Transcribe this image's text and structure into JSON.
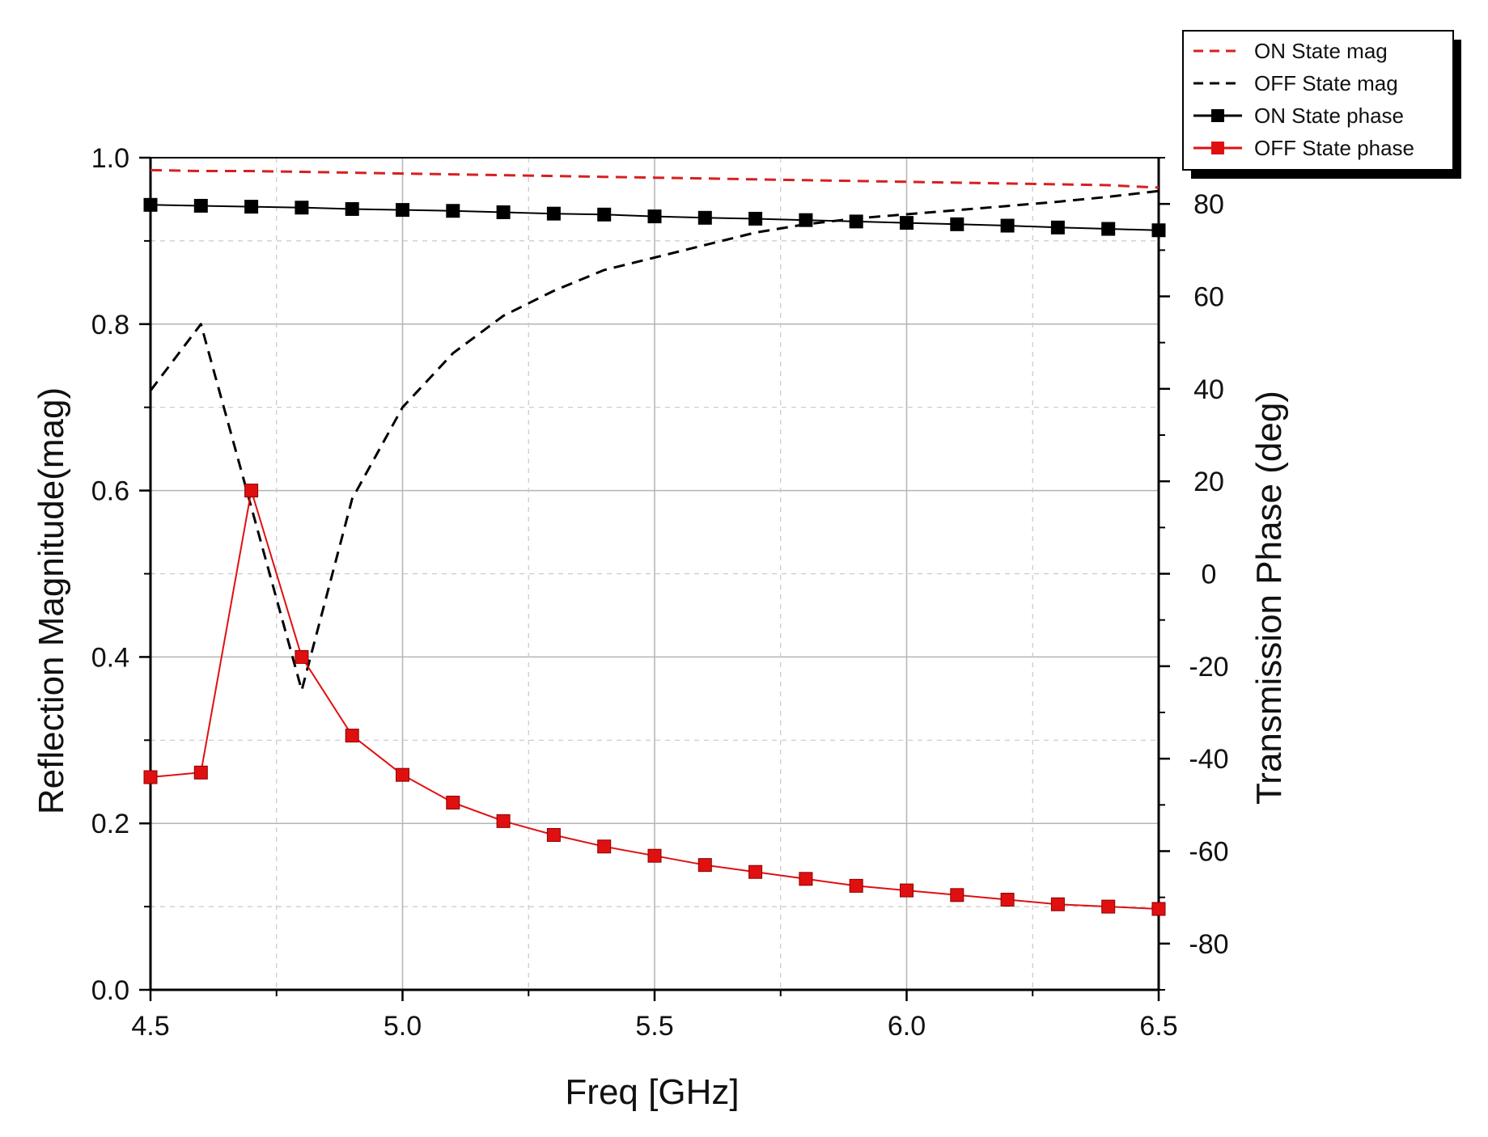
{
  "chart_data": {
    "type": "line",
    "title": "",
    "xlabel": "Freq [GHz]",
    "ylabel": "Reflection Magnitude(mag)",
    "y2label": "Transmission Phase (deg)",
    "xlim": [
      4.5,
      6.5
    ],
    "ylim": [
      0.0,
      1.0
    ],
    "y2lim": [
      -90,
      90
    ],
    "x_ticks": [
      "4.5",
      "5.0",
      "5.5",
      "6.0",
      "6.5"
    ],
    "y_ticks": [
      "0.0",
      "0.2",
      "0.4",
      "0.6",
      "0.8",
      "1.0"
    ],
    "y2_ticks": [
      "-80",
      "-60",
      "-40",
      "-20",
      "0",
      "20",
      "40",
      "60",
      "80"
    ],
    "grid": true,
    "legend_position": "top-right",
    "series": [
      {
        "name": "ON State mag",
        "axis": "left",
        "style": "dashed",
        "color": "#d62020",
        "markers": false,
        "x": [
          4.5,
          4.6,
          4.7,
          4.8,
          4.9,
          5.0,
          5.1,
          5.2,
          5.3,
          5.4,
          5.5,
          5.6,
          5.7,
          5.8,
          5.9,
          6.0,
          6.1,
          6.2,
          6.3,
          6.4,
          6.5
        ],
        "values": [
          0.985,
          0.984,
          0.984,
          0.983,
          0.982,
          0.981,
          0.98,
          0.979,
          0.978,
          0.977,
          0.976,
          0.975,
          0.974,
          0.973,
          0.972,
          0.971,
          0.97,
          0.969,
          0.968,
          0.967,
          0.964
        ]
      },
      {
        "name": "OFF State mag",
        "axis": "left",
        "style": "dashed",
        "color": "#000000",
        "markers": false,
        "x": [
          4.5,
          4.6,
          4.7,
          4.8,
          4.9,
          5.0,
          5.1,
          5.2,
          5.3,
          5.4,
          5.5,
          5.6,
          5.7,
          5.8,
          5.9,
          6.0,
          6.1,
          6.2,
          6.3,
          6.4,
          6.5
        ],
        "values": [
          0.72,
          0.8,
          0.58,
          0.36,
          0.59,
          0.7,
          0.765,
          0.81,
          0.84,
          0.865,
          0.88,
          0.895,
          0.91,
          0.92,
          0.927,
          0.932,
          0.937,
          0.942,
          0.947,
          0.953,
          0.96
        ]
      },
      {
        "name": "ON State phase",
        "axis": "right",
        "style": "solid",
        "color": "#000000",
        "markers": true,
        "x": [
          4.5,
          4.6,
          4.7,
          4.8,
          4.9,
          5.0,
          5.1,
          5.2,
          5.3,
          5.4,
          5.5,
          5.6,
          5.7,
          5.8,
          5.9,
          6.0,
          6.1,
          6.2,
          6.3,
          6.4,
          6.5
        ],
        "values": [
          79.8,
          79.6,
          79.4,
          79.2,
          78.9,
          78.7,
          78.5,
          78.2,
          77.9,
          77.7,
          77.3,
          77.0,
          76.8,
          76.5,
          76.2,
          75.9,
          75.6,
          75.3,
          74.9,
          74.6,
          74.3
        ]
      },
      {
        "name": "OFF State phase",
        "axis": "right",
        "style": "solid",
        "color": "#e01010",
        "markers": true,
        "x": [
          4.5,
          4.6,
          4.7,
          4.8,
          4.9,
          5.0,
          5.1,
          5.2,
          5.3,
          5.4,
          5.5,
          5.6,
          5.7,
          5.8,
          5.9,
          6.0,
          6.1,
          6.2,
          6.3,
          6.4,
          6.5
        ],
        "values": [
          -44,
          -43,
          18,
          -18,
          -35,
          -43.5,
          -49.5,
          -53.5,
          -56.5,
          -59,
          -61,
          -63,
          -64.5,
          -66,
          -67.5,
          -68.5,
          -69.5,
          -70.5,
          -71.5,
          -72,
          -72.5
        ]
      }
    ]
  }
}
